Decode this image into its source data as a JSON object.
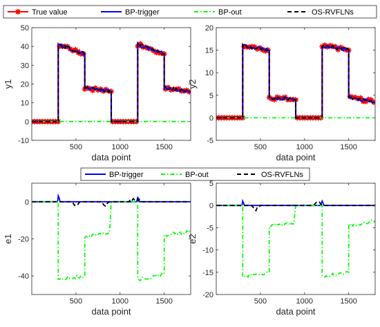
{
  "chart_data": [
    {
      "type": "line",
      "xlabel": "data point",
      "ylabel": "y1",
      "xlim": [
        0,
        1800
      ],
      "ylim": [
        -10,
        50
      ],
      "xticks": [
        500,
        1000,
        1500
      ],
      "yticks": [
        -10,
        0,
        10,
        20,
        30,
        40,
        50
      ],
      "grid": false,
      "legend": {
        "placement": "top",
        "orientation": "horizontal",
        "entries": [
          "True value",
          "BP-trigger",
          "BP-out",
          "OS-RVFLNs"
        ]
      },
      "series": [
        {
          "name": "True value",
          "color": "#ff0000",
          "style": "solid-asterisk",
          "segments": [
            [
              0,
              0
            ],
            [
              300,
              0
            ],
            [
              300,
              41
            ],
            [
              600,
              36
            ],
            [
              600,
              18
            ],
            [
              900,
              16
            ],
            [
              900,
              0
            ],
            [
              1200,
              0
            ],
            [
              1200,
              41
            ],
            [
              1500,
              36
            ],
            [
              1500,
              18
            ],
            [
              1800,
              16
            ]
          ]
        },
        {
          "name": "BP-trigger",
          "color": "#0000ff",
          "style": "solid",
          "segments": [
            [
              0,
              0
            ],
            [
              300,
              0
            ],
            [
              300,
              41
            ],
            [
              600,
              36
            ],
            [
              600,
              18
            ],
            [
              900,
              16
            ],
            [
              900,
              0
            ],
            [
              1200,
              0
            ],
            [
              1200,
              41
            ],
            [
              1500,
              36
            ],
            [
              1500,
              18
            ],
            [
              1800,
              16
            ]
          ]
        },
        {
          "name": "BP-out",
          "color": "#00ff00",
          "style": "dashdot",
          "segments": [
            [
              0,
              0
            ],
            [
              1800,
              0
            ]
          ]
        },
        {
          "name": "OS-RVFLNs",
          "color": "#000000",
          "style": "dashed",
          "segments": [
            [
              0,
              0
            ],
            [
              300,
              0
            ],
            [
              300,
              41
            ],
            [
              600,
              36
            ],
            [
              600,
              18
            ],
            [
              900,
              16
            ],
            [
              900,
              0
            ],
            [
              1200,
              0
            ],
            [
              1200,
              41
            ],
            [
              1500,
              36
            ],
            [
              1500,
              18
            ],
            [
              1800,
              16
            ]
          ]
        }
      ]
    },
    {
      "type": "line",
      "xlabel": "data point",
      "ylabel": "y2",
      "xlim": [
        0,
        1800
      ],
      "ylim": [
        -5,
        20
      ],
      "xticks": [
        500,
        1000,
        1500
      ],
      "yticks": [
        -5,
        0,
        5,
        10,
        15,
        20
      ],
      "grid": false,
      "series": [
        {
          "name": "True value",
          "color": "#ff0000",
          "style": "solid-asterisk",
          "segments": [
            [
              0,
              0
            ],
            [
              300,
              0
            ],
            [
              300,
              16
            ],
            [
              600,
              15
            ],
            [
              600,
              4.5
            ],
            [
              900,
              4
            ],
            [
              900,
              0
            ],
            [
              1200,
              0
            ],
            [
              1200,
              16
            ],
            [
              1500,
              15
            ],
            [
              1500,
              4.5
            ],
            [
              1800,
              3.5
            ]
          ]
        },
        {
          "name": "BP-trigger",
          "color": "#0000ff",
          "style": "solid",
          "segments": [
            [
              0,
              0
            ],
            [
              300,
              0
            ],
            [
              300,
              16
            ],
            [
              600,
              15
            ],
            [
              600,
              4.5
            ],
            [
              900,
              4
            ],
            [
              900,
              0
            ],
            [
              1200,
              0
            ],
            [
              1200,
              16
            ],
            [
              1500,
              15
            ],
            [
              1500,
              4.5
            ],
            [
              1800,
              3.5
            ]
          ]
        },
        {
          "name": "BP-out",
          "color": "#00ff00",
          "style": "dashdot",
          "segments": [
            [
              0,
              0
            ],
            [
              1800,
              0
            ]
          ]
        },
        {
          "name": "OS-RVFLNs",
          "color": "#000000",
          "style": "dashed",
          "segments": [
            [
              0,
              0
            ],
            [
              300,
              0
            ],
            [
              300,
              16
            ],
            [
              600,
              15
            ],
            [
              600,
              4.5
            ],
            [
              900,
              4
            ],
            [
              900,
              0
            ],
            [
              1200,
              0
            ],
            [
              1200,
              16
            ],
            [
              1500,
              15
            ],
            [
              1500,
              4.5
            ],
            [
              1800,
              3.5
            ]
          ]
        }
      ]
    },
    {
      "type": "line",
      "xlabel": "data point",
      "ylabel": "e1",
      "xlim": [
        0,
        1800
      ],
      "ylim": [
        -50,
        10
      ],
      "xticks": [
        500,
        1000,
        1500
      ],
      "yticks": [
        -40,
        -20,
        0
      ],
      "grid": false,
      "legend": {
        "placement": "top",
        "orientation": "horizontal",
        "entries": [
          "BP-trigger",
          "BP-out",
          "OS-RVFLNs"
        ]
      },
      "series": [
        {
          "name": "BP-trigger",
          "color": "#0000ff",
          "style": "solid",
          "segments": [
            [
              0,
              0
            ],
            [
              290,
              0
            ],
            [
              300,
              3
            ],
            [
              320,
              0
            ],
            [
              1180,
              0
            ],
            [
              1200,
              2
            ],
            [
              1220,
              0
            ],
            [
              1800,
              0
            ]
          ]
        },
        {
          "name": "BP-out",
          "color": "#00ff00",
          "style": "dashdot",
          "segments": [
            [
              0,
              0
            ],
            [
              300,
              0
            ],
            [
              300,
              -42
            ],
            [
              600,
              -40
            ],
            [
              600,
              -19
            ],
            [
              880,
              -17
            ],
            [
              900,
              0
            ],
            [
              1200,
              0
            ],
            [
              1200,
              -42
            ],
            [
              1500,
              -39
            ],
            [
              1500,
              -18
            ],
            [
              1800,
              -16
            ]
          ]
        },
        {
          "name": "OS-RVFLNs",
          "color": "#000000",
          "style": "dashed",
          "segments": [
            [
              0,
              0
            ],
            [
              450,
              0
            ],
            [
              500,
              -2
            ],
            [
              550,
              0
            ],
            [
              780,
              0
            ],
            [
              820,
              -2
            ],
            [
              880,
              0
            ],
            [
              1100,
              0
            ],
            [
              1150,
              2
            ],
            [
              1250,
              0
            ],
            [
              1800,
              0
            ]
          ]
        }
      ]
    },
    {
      "type": "line",
      "xlabel": "data point",
      "ylabel": "e2",
      "xlim": [
        0,
        1800
      ],
      "ylim": [
        -20,
        5
      ],
      "xticks": [
        500,
        1000,
        1500
      ],
      "yticks": [
        -20,
        -15,
        -10,
        -5,
        0,
        5
      ],
      "grid": false,
      "series": [
        {
          "name": "BP-trigger",
          "color": "#0000ff",
          "style": "solid",
          "segments": [
            [
              0,
              0
            ],
            [
              290,
              0
            ],
            [
              300,
              1
            ],
            [
              320,
              0
            ],
            [
              1180,
              0
            ],
            [
              1200,
              1
            ],
            [
              1220,
              0
            ],
            [
              1800,
              0
            ]
          ]
        },
        {
          "name": "BP-out",
          "color": "#00ff00",
          "style": "dashdot",
          "segments": [
            [
              0,
              0
            ],
            [
              300,
              0
            ],
            [
              300,
              -16
            ],
            [
              600,
              -15
            ],
            [
              600,
              -4.5
            ],
            [
              880,
              -4
            ],
            [
              900,
              0
            ],
            [
              1200,
              0
            ],
            [
              1200,
              -16
            ],
            [
              1500,
              -15
            ],
            [
              1500,
              -4.5
            ],
            [
              1800,
              -3.5
            ]
          ]
        },
        {
          "name": "OS-RVFLNs",
          "color": "#000000",
          "style": "dashed",
          "segments": [
            [
              0,
              0
            ],
            [
              400,
              0
            ],
            [
              450,
              -1
            ],
            [
              500,
              0
            ],
            [
              1100,
              0
            ],
            [
              1150,
              1
            ],
            [
              1200,
              0
            ],
            [
              1800,
              0
            ]
          ]
        }
      ]
    }
  ]
}
